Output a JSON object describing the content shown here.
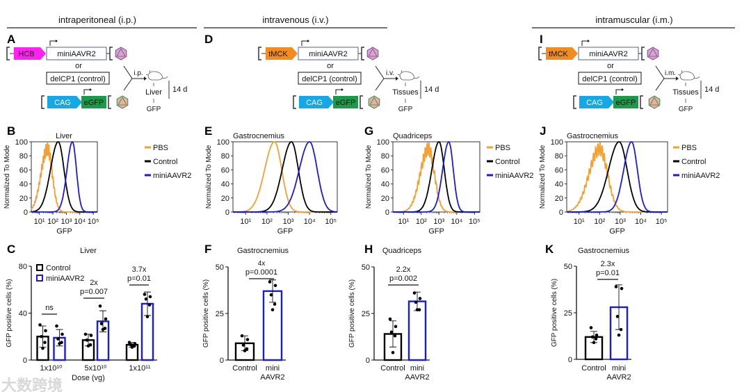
{
  "sections": [
    {
      "label": "intraperitoneal (i.p.)"
    },
    {
      "label": "intravenous (i.v.)"
    },
    {
      "label": "intramuscular (i.m.)"
    }
  ],
  "panel_letters": [
    "A",
    "B",
    "C",
    "D",
    "E",
    "F",
    "G",
    "H",
    "I",
    "J",
    "K"
  ],
  "diagrams": [
    {
      "promoter": "HCB",
      "promoter_color": "#ff22ee",
      "gene": "miniAAVR2",
      "or": "or",
      "control": "delCP1 (control)",
      "reporter_promoter": "CAG",
      "reporter_promoter_color": "#14a9e6",
      "reporter": "eGFP",
      "reporter_color": "#1a9a4a",
      "route": "i.p.",
      "tissue": "Liver",
      "readout": "GFP",
      "time": "14 d"
    },
    {
      "promoter": "tMCK",
      "promoter_color": "#f28c1e",
      "gene": "miniAAVR2",
      "or": "or",
      "control": "delCP1 (control)",
      "reporter_promoter": "CAG",
      "reporter_promoter_color": "#14a9e6",
      "reporter": "eGFP",
      "reporter_color": "#1a9a4a",
      "route": "i.v.",
      "tissue": "Tissues",
      "readout": "GFP",
      "time": "14 d"
    },
    {
      "promoter": "tMCK",
      "promoter_color": "#f28c1e",
      "gene": "miniAAVR2",
      "or": "or",
      "control": "delCP1 (control)",
      "reporter_promoter": "CAG",
      "reporter_promoter_color": "#14a9e6",
      "reporter": "eGFP",
      "reporter_color": "#1a9a4a",
      "route": "i.m.",
      "tissue": "Tissues",
      "readout": "GFP",
      "time": "14 d"
    }
  ],
  "colors": {
    "pbs": "#f5a030",
    "control": "#000000",
    "mini": "#1a1adc",
    "mini_light": "#4a66e8"
  },
  "watermark": "大数跨境",
  "chart_data": [
    {
      "panel": "B",
      "type": "line",
      "title": "Liver",
      "xlabel": "GFP",
      "ylabel": "Normalized To Mode",
      "x_scale": "log10",
      "xlim": [
        0.4,
        5.3
      ],
      "ylim": [
        0,
        100
      ],
      "x_ticks": [
        "10¹",
        "10²",
        "10³",
        "10⁴",
        "10⁵"
      ],
      "y_ticks": [
        "0",
        "20",
        "40",
        "60",
        "80",
        "100"
      ],
      "legend": [
        "PBS",
        "Control",
        "miniAAVR2"
      ],
      "legend_placement": "right",
      "series": [
        {
          "name": "PBS",
          "mode_log10": 1.6,
          "sd_log10": 0.42
        },
        {
          "name": "Control",
          "mode_log10": 2.4,
          "sd_log10": 0.5
        },
        {
          "name": "miniAAVR2",
          "mode_log10": 3.45,
          "sd_log10": 0.35
        }
      ]
    },
    {
      "panel": "E",
      "type": "line",
      "title": "Gastrocnemius",
      "xlabel": "GFP",
      "ylabel": "Normalized To Mode",
      "x_scale": "log10",
      "xlim": [
        0.4,
        5.3
      ],
      "ylim": [
        0,
        100
      ],
      "x_ticks": [
        "10¹",
        "10²",
        "10³",
        "10⁴",
        "10⁵"
      ],
      "y_ticks": [
        "0",
        "20",
        "40",
        "60",
        "80",
        "100"
      ],
      "legend": [],
      "series": [
        {
          "name": "PBS",
          "mode_log10": 2.35,
          "sd_log10": 0.4
        },
        {
          "name": "Control",
          "mode_log10": 3.15,
          "sd_log10": 0.38
        },
        {
          "name": "miniAAVR2",
          "mode_log10": 4.0,
          "sd_log10": 0.42
        }
      ]
    },
    {
      "panel": "G",
      "type": "line",
      "title": "Quadriceps",
      "xlabel": "GFP",
      "ylabel": "Normalized To Mode",
      "x_scale": "log10",
      "xlim": [
        0.4,
        5.3
      ],
      "ylim": [
        0,
        100
      ],
      "x_ticks": [
        "10¹",
        "10²",
        "10³",
        "10⁴",
        "10⁵"
      ],
      "y_ticks": [
        "0",
        "20",
        "40",
        "60",
        "80",
        "100"
      ],
      "legend": [
        "PBS",
        "Control",
        "miniAAVR2"
      ],
      "legend_placement": "right",
      "series": [
        {
          "name": "PBS",
          "mode_log10": 2.4,
          "sd_log10": 0.4
        },
        {
          "name": "Control",
          "mode_log10": 3.0,
          "sd_log10": 0.35
        },
        {
          "name": "miniAAVR2",
          "mode_log10": 3.55,
          "sd_log10": 0.3
        }
      ]
    },
    {
      "panel": "J",
      "type": "line",
      "title": "Gastrocnemius",
      "xlabel": "GFP",
      "ylabel": "Normalized To Mode",
      "x_scale": "log10",
      "xlim": [
        0.4,
        5.3
      ],
      "ylim": [
        0,
        100
      ],
      "x_ticks": [
        "10¹",
        "10²",
        "10³",
        "10⁴",
        "10⁵"
      ],
      "y_ticks": [
        "0",
        "20",
        "40",
        "60",
        "80",
        "100"
      ],
      "legend": [
        "PBS",
        "Control",
        "miniAAVR2"
      ],
      "legend_placement": "right",
      "series": [
        {
          "name": "PBS",
          "mode_log10": 2.0,
          "sd_log10": 0.45
        },
        {
          "name": "Control",
          "mode_log10": 2.95,
          "sd_log10": 0.45
        },
        {
          "name": "miniAAVR2",
          "mode_log10": 3.55,
          "sd_log10": 0.33
        }
      ]
    },
    {
      "panel": "C",
      "type": "bar",
      "title": "Liver",
      "xlabel": "Dose (vg)",
      "ylabel": "GFP positive cells (%)",
      "ylim": [
        0,
        80
      ],
      "y_ticks": [
        0,
        40,
        80
      ],
      "legend": [
        "Control",
        "miniAAVR2"
      ],
      "legend_placement": "top-left",
      "categories": [
        [
          "1x10¹⁰"
        ],
        [
          "5x10¹⁰"
        ],
        [
          "1x10¹¹"
        ]
      ],
      "series": [
        {
          "name": "Control",
          "values": [
            20,
            17,
            13
          ],
          "sd": [
            9,
            5,
            2
          ],
          "points": [
            [
              30,
              25,
              20,
              15,
              10
            ],
            [
              22,
              21,
              17,
              13,
              12
            ],
            [
              15,
              14,
              13,
              12,
              11
            ]
          ]
        },
        {
          "name": "miniAAVR2",
          "values": [
            19,
            33,
            48
          ],
          "sd": [
            7,
            9,
            10
          ],
          "points": [
            [
              29,
              22,
              18,
              15,
              14
            ],
            [
              46,
              35,
              31,
              27,
              26
            ],
            [
              56,
              54,
              52,
              47,
              37
            ]
          ]
        }
      ],
      "annotations": [
        [
          "ns"
        ],
        [
          "2x",
          "p=0.007"
        ],
        [
          "3.7x",
          "p=0.01"
        ]
      ]
    },
    {
      "panel": "F",
      "type": "bar",
      "title": "Gastrocnemius",
      "xlabel": "",
      "ylabel": "GFP positive cells (%)",
      "ylim": [
        0,
        50
      ],
      "y_ticks": [
        0,
        25,
        50
      ],
      "categories": [
        [
          "Control"
        ],
        [
          "mini",
          "AAVR2"
        ]
      ],
      "series": [
        {
          "name": "values",
          "values": [
            9,
            37
          ],
          "sd": [
            4,
            6
          ],
          "points": [
            [
              13,
              11,
              8,
              6,
              5
            ],
            [
              42,
              40,
              35,
              30,
              27
            ]
          ]
        }
      ],
      "annotations": [
        [
          "4x",
          "p=0.0001"
        ]
      ]
    },
    {
      "panel": "H",
      "type": "bar",
      "title": "Quadriceps",
      "xlabel": "",
      "ylabel": "GFP positive cells (%)",
      "ylim": [
        0,
        50
      ],
      "y_ticks": [
        0,
        25,
        50
      ],
      "categories": [
        [
          "Control"
        ],
        [
          "mini",
          "AAVR2"
        ]
      ],
      "series": [
        {
          "name": "values",
          "values": [
            14,
            31.5
          ],
          "sd": [
            7,
            5
          ],
          "points": [
            [
              22,
              18,
              15,
              13,
              4
            ],
            [
              36,
              33,
              31,
              27,
              27
            ]
          ]
        }
      ],
      "annotations": [
        [
          "2.2x",
          "p=0.002"
        ]
      ]
    },
    {
      "panel": "K",
      "type": "bar",
      "title": "Gastrocnemius",
      "xlabel": "",
      "ylabel": "GFP positive cells (%)",
      "ylim": [
        0,
        50
      ],
      "y_ticks": [
        0,
        25,
        50
      ],
      "categories": [
        [
          "Control"
        ],
        [
          "mini",
          "AAVR2"
        ]
      ],
      "series": [
        {
          "name": "values",
          "values": [
            12,
            28
          ],
          "sd": [
            3,
            12
          ],
          "points": [
            [
              17,
              13,
              12,
              11,
              9
            ],
            [
              39,
              38,
              23,
              16,
              13
            ]
          ]
        }
      ],
      "annotations": [
        [
          "2.3x",
          "p=0.01"
        ]
      ]
    }
  ]
}
